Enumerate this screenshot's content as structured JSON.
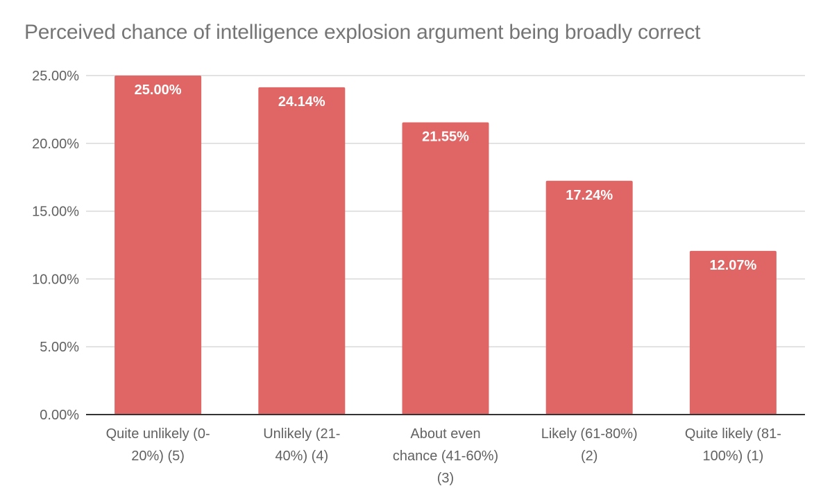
{
  "chart_data": {
    "type": "bar",
    "title": "Perceived chance of intelligence explosion argument being broadly correct",
    "categories": [
      [
        "Quite unlikely (0-",
        "20%) (5)"
      ],
      [
        "Unlikely (21-",
        "40%) (4)"
      ],
      [
        "About even",
        "chance (41-60%)",
        "(3)"
      ],
      [
        "Likely (61-80%)",
        "(2)"
      ],
      [
        "Quite likely (81-",
        "100%) (1)"
      ]
    ],
    "values": [
      25.0,
      24.14,
      21.55,
      17.24,
      12.07
    ],
    "data_labels": [
      "25.00%",
      "24.14%",
      "21.55%",
      "17.24%",
      "12.07%"
    ],
    "y_ticks": [
      0,
      5,
      10,
      15,
      20,
      25
    ],
    "y_tick_labels": [
      "0.00%",
      "5.00%",
      "10.00%",
      "15.00%",
      "20.00%",
      "25.00%"
    ],
    "ylim": [
      0,
      25
    ],
    "grid": true,
    "legend": "none",
    "colors": {
      "bar": "#e06666",
      "grid": "#d9d9d9",
      "axis": "#333333"
    }
  }
}
